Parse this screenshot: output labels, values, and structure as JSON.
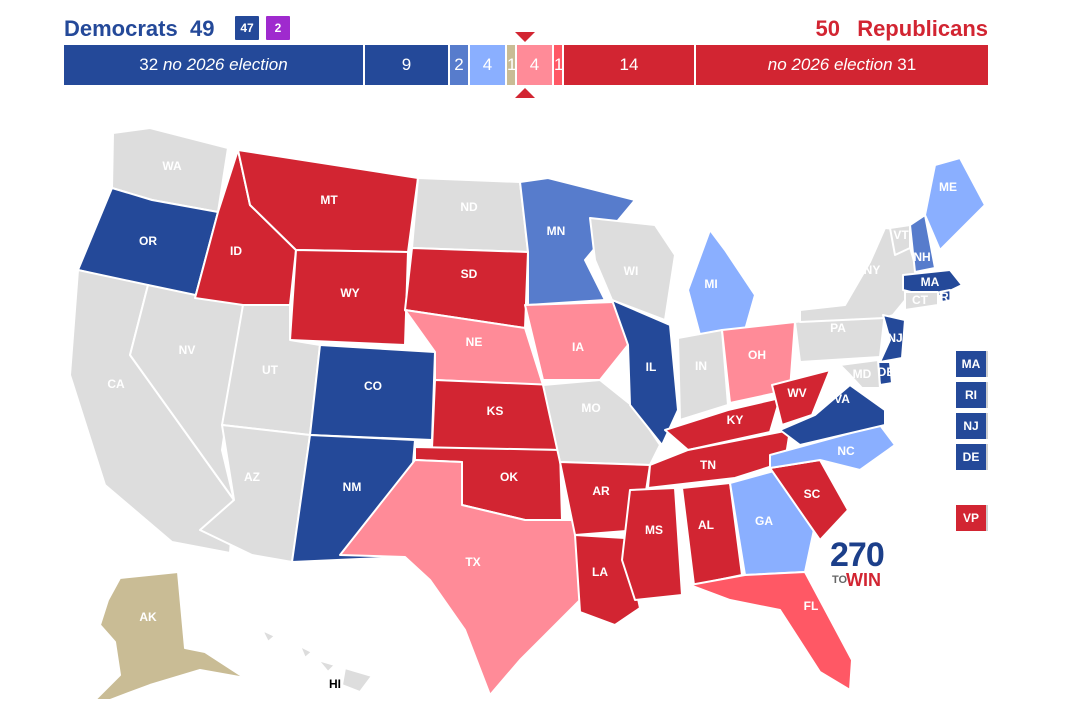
{
  "header": {
    "dem_label": "Democrats",
    "dem_total": "49",
    "dem_badge": "47",
    "ind_badge": "2",
    "rep_total": "50",
    "rep_label": "Republicans"
  },
  "colors": {
    "safe_dem": "#244999",
    "likely_dem": "#577CCC",
    "lean_dem": "#8AAFFF",
    "tossup": "#C9BC95",
    "lean_rep": "#FF8B98",
    "likely_rep": "#FF5865",
    "safe_rep": "#D22532",
    "no_election": "#DDDDDD",
    "independent": "#9F2ACE"
  },
  "bar": [
    {
      "count": "32",
      "text": "no 2026 election",
      "color": "safe_dem"
    },
    {
      "count": "9",
      "text": "",
      "color": "safe_dem"
    },
    {
      "count": "2",
      "text": "",
      "color": "likely_dem"
    },
    {
      "count": "4",
      "text": "",
      "color": "lean_dem"
    },
    {
      "count": "1",
      "text": "",
      "color": "tossup"
    },
    {
      "count": "4",
      "text": "",
      "color": "lean_rep"
    },
    {
      "count": "1",
      "text": "",
      "color": "likely_rep"
    },
    {
      "count": "14",
      "text": "",
      "color": "safe_rep"
    },
    {
      "count": "31",
      "text": "no 2026 election",
      "color": "safe_rep"
    }
  ],
  "states": {
    "WA": "no_election",
    "OR": "safe_dem",
    "CA": "no_election",
    "NV": "no_election",
    "ID": "safe_rep",
    "MT": "safe_rep",
    "WY": "safe_rep",
    "UT": "no_election",
    "AZ": "no_election",
    "CO": "safe_dem",
    "NM": "safe_dem",
    "ND": "no_election",
    "SD": "safe_rep",
    "NE": "lean_rep",
    "KS": "safe_rep",
    "OK": "safe_rep",
    "TX": "lean_rep",
    "MN": "likely_dem",
    "IA": "lean_rep",
    "MO": "no_election",
    "AR": "safe_rep",
    "LA": "safe_rep",
    "WI": "no_election",
    "IL": "safe_dem",
    "MS": "safe_rep",
    "MI": "lean_dem",
    "IN": "no_election",
    "KY": "safe_rep",
    "TN": "safe_rep",
    "AL": "safe_rep",
    "OH": "lean_rep",
    "WV": "safe_rep",
    "GA": "lean_dem",
    "FL": "likely_rep",
    "SC": "safe_rep",
    "NC": "lean_dem",
    "VA": "safe_dem",
    "PA": "no_election",
    "NY": "no_election",
    "VT": "no_election",
    "NH": "likely_dem",
    "ME": "lean_dem",
    "MA": "safe_dem",
    "RI": "safe_dem",
    "CT": "no_election",
    "NJ": "safe_dem",
    "DE": "safe_dem",
    "MD": "no_election",
    "AK": "tossup",
    "HI": "no_election"
  },
  "side_boxes": [
    "MA",
    "RI",
    "NJ",
    "DE"
  ],
  "vp_box": "VP",
  "logo": {
    "number": "270",
    "to": "TO",
    "win": "WIN"
  }
}
